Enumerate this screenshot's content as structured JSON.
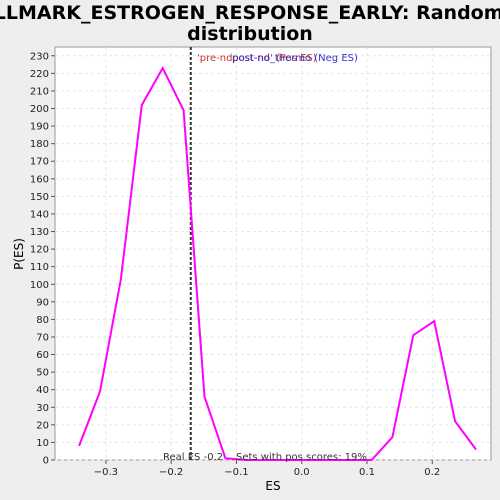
{
  "chart_data": {
    "type": "line",
    "title_lines": [
      "HALLMARK_ESTROGEN_RESPONSE_EARLY: Random ES",
      "distribution"
    ],
    "xlabel": "ES",
    "ylabel": "P(ES)",
    "xlim": [
      -0.378,
      0.29
    ],
    "ylim": [
      0,
      235
    ],
    "xticks": [
      -0.3,
      -0.2,
      -0.1,
      0.0,
      0.1,
      0.2
    ],
    "xtick_labels": [
      "−0.3",
      "−0.2",
      "−0.1",
      "0.0",
      "0.1",
      "0.2"
    ],
    "yticks": [
      0,
      10,
      20,
      30,
      40,
      50,
      60,
      70,
      80,
      90,
      100,
      110,
      120,
      130,
      140,
      150,
      160,
      170,
      180,
      190,
      200,
      210,
      220,
      230
    ],
    "grid": true,
    "series": [
      {
        "color": "#ff00ff",
        "x": [
          -0.341,
          -0.309,
          -0.277,
          -0.245,
          -0.213,
          -0.181,
          -0.149,
          -0.117,
          -0.085,
          -0.053,
          -0.021,
          0.011,
          0.043,
          0.075,
          0.107,
          0.139,
          0.171,
          0.203,
          0.235,
          0.267
        ],
        "y": [
          8,
          39,
          103,
          202,
          223,
          199,
          36,
          1,
          0,
          0,
          0,
          0,
          0,
          0,
          0,
          13,
          71,
          79,
          22,
          6
        ]
      }
    ],
    "real_es": -0.17,
    "legend": [
      {
        "text": "'pre-ndpost-no' (Pos ES)",
        "color": "#cc3333"
      },
      {
        "text": "post-nd_thermo (Neg ES)",
        "color": "#3333cc"
      }
    ],
    "annotations": {
      "real_es_label": "Real ES -0.2",
      "pos_scores_label": "Sets with pos scores: 19%"
    }
  }
}
